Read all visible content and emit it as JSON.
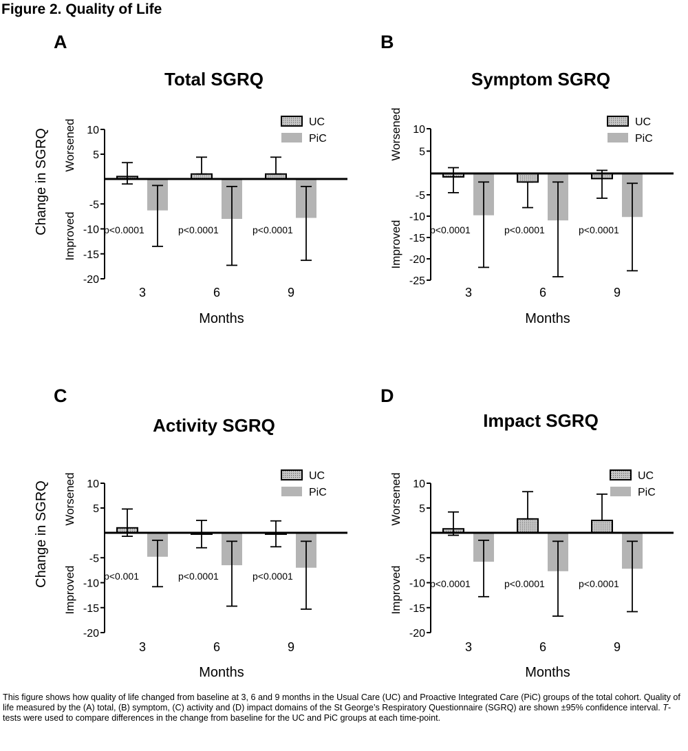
{
  "figure_title": "Figure 2. Quality of Life",
  "caption": {
    "part1": "This figure shows how quality of life changed from baseline at 3, 6 and 9 months in the Usual Care (UC) and Proactive Integrated Care (PiC) groups of the total cohort. Quality of life measured by the (A) total, (B) symptom, (C) activity and (D) impact domains of the St George’s Respiratory Questionnaire (SGRQ) are shown ±95% confidence interval. ",
    "italic": "T",
    "part2": "-tests were used to compare differences in the change from baseline for the UC and PiC groups at each time-point."
  },
  "colors": {
    "uc_fill": "#b8b8b8",
    "uc_stroke": "#000000",
    "pic_fill": "#b4b4b4",
    "axis": "#000000"
  },
  "chart_data": [
    {
      "panel": "A",
      "type": "bar",
      "title": "Total SGRQ",
      "xlabel": "Months",
      "ylabel": "Change in SGRQ",
      "region_labels": {
        "upper": "Worsened",
        "lower": "Improved"
      },
      "categories": [
        "3",
        "6",
        "9"
      ],
      "ylim": [
        -20,
        10
      ],
      "yticks": [
        10,
        5,
        -5,
        -10,
        -15,
        -20
      ],
      "series": [
        {
          "name": "UC",
          "values": [
            0.5,
            1.0,
            1.0
          ],
          "err_lo": [
            -1.0,
            1.0,
            1.0
          ],
          "err_hi": [
            3.3,
            4.4,
            4.4
          ]
        },
        {
          "name": "PiC",
          "values": [
            -6.3,
            -8.0,
            -7.8
          ],
          "err_lo": [
            -13.5,
            -17.3,
            -16.3
          ],
          "err_hi": [
            -1.3,
            -1.5,
            -1.5
          ]
        }
      ],
      "annotations": [
        "p<0.0001",
        "p<0.0001",
        "p<0.0001"
      ]
    },
    {
      "panel": "B",
      "type": "bar",
      "title": "Symptom SGRQ",
      "xlabel": "Months",
      "ylabel": "",
      "region_labels": {
        "upper": "Worsened",
        "lower": "Improved"
      },
      "categories": [
        "3",
        "6",
        "9"
      ],
      "ylim": [
        -25,
        10
      ],
      "yticks": [
        10,
        5,
        -5,
        -10,
        -15,
        -20,
        -25
      ],
      "series": [
        {
          "name": "UC",
          "values": [
            -0.8,
            -2.0,
            -1.2
          ],
          "err_lo": [
            -4.5,
            -8.0,
            -5.8
          ],
          "err_hi": [
            1.3,
            -2.0,
            0.7
          ]
        },
        {
          "name": "PiC",
          "values": [
            -9.8,
            -11.0,
            -10.2
          ],
          "err_lo": [
            -22.0,
            -24.2,
            -22.8
          ],
          "err_hi": [
            -2.0,
            -2.0,
            -2.3
          ]
        }
      ],
      "annotations": [
        "p<0.0001",
        "p<0.0001",
        "p<0.0001"
      ]
    },
    {
      "panel": "C",
      "type": "bar",
      "title": "Activity SGRQ",
      "xlabel": "Months",
      "ylabel": "Change in SGRQ",
      "region_labels": {
        "upper": "Worsened",
        "lower": "Improved"
      },
      "categories": [
        "3",
        "6",
        "9"
      ],
      "ylim": [
        -20,
        10
      ],
      "yticks": [
        10,
        5,
        -5,
        -10,
        -15,
        -20
      ],
      "series": [
        {
          "name": "UC",
          "values": [
            1.0,
            -0.2,
            -0.2
          ],
          "err_lo": [
            -0.7,
            -3.0,
            -2.8
          ],
          "err_hi": [
            4.8,
            2.5,
            2.4
          ]
        },
        {
          "name": "PiC",
          "values": [
            -4.8,
            -6.5,
            -7.0
          ],
          "err_lo": [
            -10.8,
            -14.7,
            -15.3
          ],
          "err_hi": [
            -1.5,
            -1.7,
            -1.7
          ]
        }
      ],
      "annotations": [
        "p<0.001",
        "p<0.0001",
        "p<0.0001"
      ]
    },
    {
      "panel": "D",
      "type": "bar",
      "title": "Impact SGRQ",
      "xlabel": "Months",
      "ylabel": "",
      "region_labels": {
        "upper": "Worsened",
        "lower": "Improved"
      },
      "categories": [
        "3",
        "6",
        "9"
      ],
      "ylim": [
        -20,
        10
      ],
      "yticks": [
        10,
        5,
        -5,
        -10,
        -15,
        -20
      ],
      "series": [
        {
          "name": "UC",
          "values": [
            0.8,
            2.8,
            2.5
          ],
          "err_lo": [
            -0.5,
            2.8,
            2.5
          ],
          "err_hi": [
            4.2,
            8.3,
            7.8
          ]
        },
        {
          "name": "PiC",
          "values": [
            -5.8,
            -7.7,
            -7.2
          ],
          "err_lo": [
            -12.8,
            -16.7,
            -15.8
          ],
          "err_hi": [
            -1.5,
            -1.7,
            -1.7
          ]
        }
      ],
      "annotations": [
        "p<0.0001",
        "p<0.0001",
        "p<0.0001"
      ]
    }
  ]
}
